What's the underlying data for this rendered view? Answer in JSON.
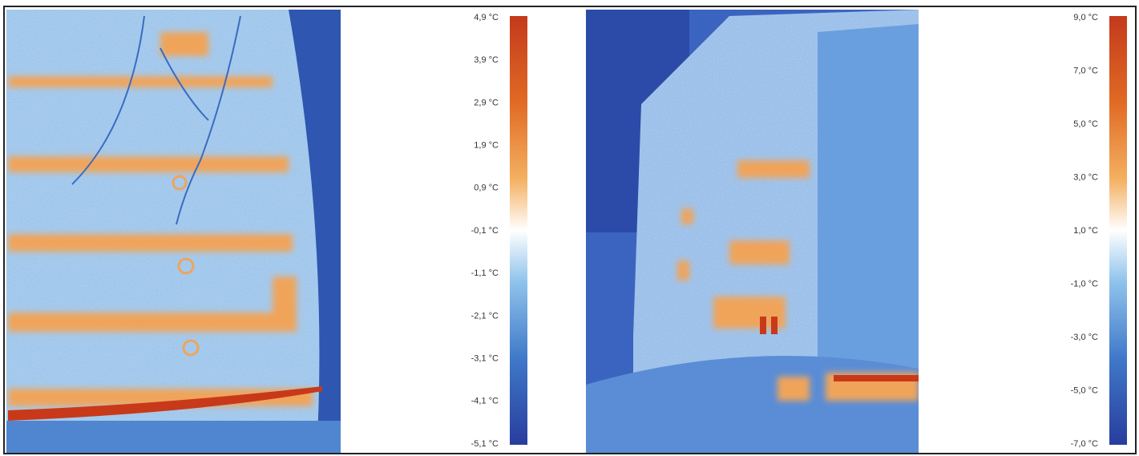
{
  "panels": [
    {
      "scale_labels": [
        "4,9 °C",
        "3,9 °C",
        "2,9 °C",
        "1,9 °C",
        "0,9 °C",
        "-0,1 °C",
        "-1,1 °C",
        "-2,1 °C",
        "-3,1 °C",
        "-4,1 °C",
        "-5,1 °C"
      ]
    },
    {
      "scale_labels": [
        "9,0 °C",
        "7,0 °C",
        "5,0 °C",
        "3,0 °C",
        "1,0 °C",
        "-1,0 °C",
        "-3,0 °C",
        "-5,0 °C",
        "-7,0 °C"
      ]
    }
  ]
}
